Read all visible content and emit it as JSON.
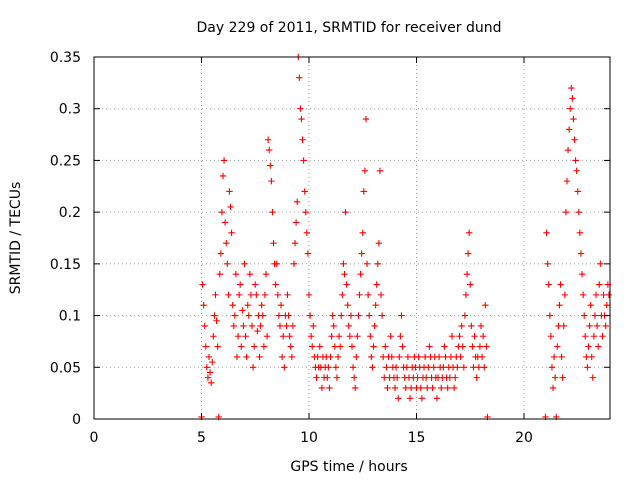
{
  "chart_data": {
    "type": "scatter",
    "title": "Day 229 of 2011, SRMTID for receiver dund",
    "xlabel": "GPS time / hours",
    "ylabel": "SRMTID / TECUs",
    "xlim": [
      0,
      24
    ],
    "ylim": [
      0,
      0.35
    ],
    "xticks": [
      0,
      5,
      10,
      15,
      20
    ],
    "xtick_labels": [
      "0",
      "5",
      "10",
      "15",
      "20"
    ],
    "yticks": [
      0,
      0.05,
      0.1,
      0.15,
      0.2,
      0.25,
      0.3,
      0.35
    ],
    "ytick_labels": [
      "0",
      "0.05",
      "0.1",
      "0.15",
      "0.2",
      "0.25",
      "0.3",
      "0.35"
    ],
    "grid": true,
    "legend": "none",
    "marker": "plus",
    "color": "#ff0000",
    "point_count_note": "approximately 1900 points; dense clusters listed as sampled readings",
    "points": [
      [
        5.0,
        0.002
      ],
      [
        5.05,
        0.13
      ],
      [
        5.1,
        0.11
      ],
      [
        5.15,
        0.09
      ],
      [
        5.2,
        0.07
      ],
      [
        5.25,
        0.05
      ],
      [
        5.3,
        0.04
      ],
      [
        5.35,
        0.06
      ],
      [
        5.4,
        0.045
      ],
      [
        5.45,
        0.035
      ],
      [
        5.5,
        0.055
      ],
      [
        5.55,
        0.08
      ],
      [
        5.6,
        0.1
      ],
      [
        5.65,
        0.12
      ],
      [
        5.7,
        0.095
      ],
      [
        5.75,
        0.07
      ],
      [
        5.8,
        0.002
      ],
      [
        5.85,
        0.14
      ],
      [
        5.9,
        0.16
      ],
      [
        5.95,
        0.2
      ],
      [
        6.0,
        0.235
      ],
      [
        6.05,
        0.25
      ],
      [
        6.1,
        0.19
      ],
      [
        6.15,
        0.17
      ],
      [
        6.2,
        0.15
      ],
      [
        6.25,
        0.12
      ],
      [
        6.3,
        0.22
      ],
      [
        6.35,
        0.205
      ],
      [
        6.4,
        0.18
      ],
      [
        6.45,
        0.11
      ],
      [
        6.5,
        0.09
      ],
      [
        6.55,
        0.1
      ],
      [
        6.6,
        0.14
      ],
      [
        6.65,
        0.06
      ],
      [
        6.7,
        0.08
      ],
      [
        6.75,
        0.12
      ],
      [
        6.8,
        0.13
      ],
      [
        6.85,
        0.07
      ],
      [
        6.9,
        0.105
      ],
      [
        6.95,
        0.09
      ],
      [
        7.0,
        0.15
      ],
      [
        7.05,
        0.08
      ],
      [
        7.1,
        0.06
      ],
      [
        7.15,
        0.11
      ],
      [
        7.2,
        0.1
      ],
      [
        7.25,
        0.14
      ],
      [
        7.3,
        0.12
      ],
      [
        7.35,
        0.09
      ],
      [
        7.4,
        0.05
      ],
      [
        7.45,
        0.07
      ],
      [
        7.5,
        0.13
      ],
      [
        7.55,
        0.12
      ],
      [
        7.6,
        0.085
      ],
      [
        7.65,
        0.1
      ],
      [
        7.7,
        0.06
      ],
      [
        7.75,
        0.09
      ],
      [
        7.8,
        0.11
      ],
      [
        7.85,
        0.1
      ],
      [
        7.9,
        0.07
      ],
      [
        7.95,
        0.12
      ],
      [
        8.0,
        0.14
      ],
      [
        8.05,
        0.08
      ],
      [
        8.1,
        0.27
      ],
      [
        8.15,
        0.26
      ],
      [
        8.2,
        0.245
      ],
      [
        8.25,
        0.23
      ],
      [
        8.3,
        0.2
      ],
      [
        8.35,
        0.17
      ],
      [
        8.4,
        0.15
      ],
      [
        8.45,
        0.13
      ],
      [
        8.5,
        0.15
      ],
      [
        8.55,
        0.12
      ],
      [
        8.6,
        0.1
      ],
      [
        8.65,
        0.09
      ],
      [
        8.7,
        0.11
      ],
      [
        8.75,
        0.06
      ],
      [
        8.8,
        0.08
      ],
      [
        8.85,
        0.05
      ],
      [
        8.9,
        0.1
      ],
      [
        8.95,
        0.09
      ],
      [
        9.0,
        0.12
      ],
      [
        9.05,
        0.1
      ],
      [
        9.1,
        0.08
      ],
      [
        9.15,
        0.07
      ],
      [
        9.2,
        0.06
      ],
      [
        9.25,
        0.09
      ],
      [
        9.3,
        0.15
      ],
      [
        9.35,
        0.17
      ],
      [
        9.4,
        0.19
      ],
      [
        9.45,
        0.21
      ],
      [
        9.5,
        0.35
      ],
      [
        9.55,
        0.33
      ],
      [
        9.6,
        0.3
      ],
      [
        9.65,
        0.29
      ],
      [
        9.7,
        0.27
      ],
      [
        9.75,
        0.25
      ],
      [
        9.8,
        0.22
      ],
      [
        9.85,
        0.2
      ],
      [
        9.9,
        0.18
      ],
      [
        9.95,
        0.16
      ],
      [
        10.0,
        0.12
      ],
      [
        10.05,
        0.1
      ],
      [
        10.1,
        0.08
      ],
      [
        10.15,
        0.07
      ],
      [
        10.2,
        0.09
      ],
      [
        10.25,
        0.06
      ],
      [
        10.3,
        0.05
      ],
      [
        10.35,
        0.04
      ],
      [
        10.4,
        0.06
      ],
      [
        10.45,
        0.05
      ],
      [
        10.5,
        0.07
      ],
      [
        10.55,
        0.05
      ],
      [
        10.6,
        0.03
      ],
      [
        10.65,
        0.06
      ],
      [
        10.7,
        0.04
      ],
      [
        10.75,
        0.05
      ],
      [
        10.8,
        0.06
      ],
      [
        10.85,
        0.04
      ],
      [
        10.9,
        0.05
      ],
      [
        10.95,
        0.03
      ],
      [
        11.0,
        0.06
      ],
      [
        11.05,
        0.08
      ],
      [
        11.1,
        0.1
      ],
      [
        11.15,
        0.09
      ],
      [
        11.2,
        0.07
      ],
      [
        11.25,
        0.05
      ],
      [
        11.3,
        0.04
      ],
      [
        11.35,
        0.06
      ],
      [
        11.4,
        0.08
      ],
      [
        11.45,
        0.07
      ],
      [
        11.5,
        0.1
      ],
      [
        11.55,
        0.12
      ],
      [
        11.6,
        0.15
      ],
      [
        11.65,
        0.14
      ],
      [
        11.7,
        0.2
      ],
      [
        11.75,
        0.13
      ],
      [
        11.8,
        0.11
      ],
      [
        11.85,
        0.09
      ],
      [
        11.9,
        0.08
      ],
      [
        11.95,
        0.1
      ],
      [
        12.0,
        0.07
      ],
      [
        12.05,
        0.05
      ],
      [
        12.1,
        0.04
      ],
      [
        12.15,
        0.03
      ],
      [
        12.2,
        0.06
      ],
      [
        12.25,
        0.08
      ],
      [
        12.3,
        0.1
      ],
      [
        12.35,
        0.12
      ],
      [
        12.4,
        0.14
      ],
      [
        12.45,
        0.16
      ],
      [
        12.5,
        0.18
      ],
      [
        12.55,
        0.22
      ],
      [
        12.6,
        0.24
      ],
      [
        12.65,
        0.29
      ],
      [
        12.7,
        0.15
      ],
      [
        12.75,
        0.12
      ],
      [
        12.8,
        0.1
      ],
      [
        12.85,
        0.08
      ],
      [
        12.9,
        0.06
      ],
      [
        12.95,
        0.05
      ],
      [
        13.0,
        0.07
      ],
      [
        13.05,
        0.09
      ],
      [
        13.1,
        0.11
      ],
      [
        13.15,
        0.13
      ],
      [
        13.2,
        0.15
      ],
      [
        13.25,
        0.17
      ],
      [
        13.3,
        0.24
      ],
      [
        13.35,
        0.12
      ],
      [
        13.4,
        0.1
      ],
      [
        13.45,
        0.06
      ],
      [
        13.5,
        0.04
      ],
      [
        13.55,
        0.07
      ],
      [
        13.6,
        0.05
      ],
      [
        13.65,
        0.03
      ],
      [
        13.7,
        0.06
      ],
      [
        13.75,
        0.04
      ],
      [
        13.8,
        0.08
      ],
      [
        13.85,
        0.06
      ],
      [
        13.9,
        0.05
      ],
      [
        13.95,
        0.04
      ],
      [
        14.0,
        0.03
      ],
      [
        14.05,
        0.05
      ],
      [
        14.1,
        0.04
      ],
      [
        14.15,
        0.02
      ],
      [
        14.2,
        0.06
      ],
      [
        14.25,
        0.08
      ],
      [
        14.3,
        0.1
      ],
      [
        14.35,
        0.07
      ],
      [
        14.4,
        0.05
      ],
      [
        14.45,
        0.04
      ],
      [
        14.5,
        0.03
      ],
      [
        14.55,
        0.05
      ],
      [
        14.6,
        0.06
      ],
      [
        14.65,
        0.04
      ],
      [
        14.7,
        0.02
      ],
      [
        14.75,
        0.03
      ],
      [
        14.8,
        0.05
      ],
      [
        14.85,
        0.04
      ],
      [
        14.9,
        0.06
      ],
      [
        14.95,
        0.05
      ],
      [
        15.0,
        0.03
      ],
      [
        15.05,
        0.04
      ],
      [
        15.1,
        0.06
      ],
      [
        15.15,
        0.05
      ],
      [
        15.2,
        0.03
      ],
      [
        15.25,
        0.02
      ],
      [
        15.3,
        0.04
      ],
      [
        15.35,
        0.05
      ],
      [
        15.4,
        0.06
      ],
      [
        15.45,
        0.04
      ],
      [
        15.5,
        0.03
      ],
      [
        15.55,
        0.05
      ],
      [
        15.6,
        0.07
      ],
      [
        15.65,
        0.06
      ],
      [
        15.7,
        0.04
      ],
      [
        15.75,
        0.03
      ],
      [
        15.8,
        0.05
      ],
      [
        15.85,
        0.06
      ],
      [
        15.9,
        0.04
      ],
      [
        15.95,
        0.02
      ],
      [
        16.0,
        0.04
      ],
      [
        16.05,
        0.06
      ],
      [
        16.1,
        0.05
      ],
      [
        16.15,
        0.03
      ],
      [
        16.2,
        0.04
      ],
      [
        16.25,
        0.05
      ],
      [
        16.3,
        0.07
      ],
      [
        16.35,
        0.06
      ],
      [
        16.4,
        0.04
      ],
      [
        16.45,
        0.03
      ],
      [
        16.5,
        0.05
      ],
      [
        16.55,
        0.04
      ],
      [
        16.6,
        0.06
      ],
      [
        16.65,
        0.08
      ],
      [
        16.7,
        0.05
      ],
      [
        16.75,
        0.03
      ],
      [
        16.8,
        0.04
      ],
      [
        16.85,
        0.06
      ],
      [
        16.9,
        0.05
      ],
      [
        16.95,
        0.07
      ],
      [
        17.0,
        0.08
      ],
      [
        17.05,
        0.06
      ],
      [
        17.1,
        0.09
      ],
      [
        17.15,
        0.07
      ],
      [
        17.2,
        0.05
      ],
      [
        17.25,
        0.1
      ],
      [
        17.3,
        0.12
      ],
      [
        17.35,
        0.14
      ],
      [
        17.4,
        0.16
      ],
      [
        17.45,
        0.18
      ],
      [
        17.5,
        0.13
      ],
      [
        17.55,
        0.09
      ],
      [
        17.6,
        0.07
      ],
      [
        17.65,
        0.05
      ],
      [
        17.7,
        0.08
      ],
      [
        17.75,
        0.06
      ],
      [
        17.8,
        0.04
      ],
      [
        17.85,
        0.06
      ],
      [
        17.9,
        0.05
      ],
      [
        17.95,
        0.07
      ],
      [
        18.0,
        0.09
      ],
      [
        18.05,
        0.06
      ],
      [
        18.1,
        0.08
      ],
      [
        18.15,
        0.05
      ],
      [
        18.2,
        0.11
      ],
      [
        18.25,
        0.07
      ],
      [
        18.3,
        0.002
      ],
      [
        21.0,
        0.002
      ],
      [
        21.05,
        0.18
      ],
      [
        21.1,
        0.15
      ],
      [
        21.15,
        0.13
      ],
      [
        21.2,
        0.1
      ],
      [
        21.25,
        0.08
      ],
      [
        21.3,
        0.05
      ],
      [
        21.35,
        0.03
      ],
      [
        21.4,
        0.06
      ],
      [
        21.45,
        0.04
      ],
      [
        21.5,
        0.002
      ],
      [
        21.55,
        0.07
      ],
      [
        21.6,
        0.09
      ],
      [
        21.65,
        0.11
      ],
      [
        21.7,
        0.13
      ],
      [
        21.75,
        0.06
      ],
      [
        21.8,
        0.04
      ],
      [
        21.85,
        0.09
      ],
      [
        21.9,
        0.12
      ],
      [
        21.95,
        0.2
      ],
      [
        22.0,
        0.23
      ],
      [
        22.05,
        0.26
      ],
      [
        22.1,
        0.28
      ],
      [
        22.15,
        0.3
      ],
      [
        22.2,
        0.32
      ],
      [
        22.25,
        0.31
      ],
      [
        22.3,
        0.29
      ],
      [
        22.35,
        0.27
      ],
      [
        22.4,
        0.25
      ],
      [
        22.45,
        0.24
      ],
      [
        22.5,
        0.22
      ],
      [
        22.55,
        0.2
      ],
      [
        22.6,
        0.18
      ],
      [
        22.65,
        0.16
      ],
      [
        22.7,
        0.14
      ],
      [
        22.75,
        0.12
      ],
      [
        22.8,
        0.1
      ],
      [
        22.85,
        0.08
      ],
      [
        22.9,
        0.06
      ],
      [
        22.95,
        0.05
      ],
      [
        23.0,
        0.07
      ],
      [
        23.05,
        0.09
      ],
      [
        23.1,
        0.11
      ],
      [
        23.15,
        0.06
      ],
      [
        23.2,
        0.04
      ],
      [
        23.25,
        0.08
      ],
      [
        23.3,
        0.1
      ],
      [
        23.35,
        0.12
      ],
      [
        23.4,
        0.09
      ],
      [
        23.45,
        0.07
      ],
      [
        23.5,
        0.13
      ],
      [
        23.55,
        0.15
      ],
      [
        23.6,
        0.1
      ],
      [
        23.65,
        0.08
      ],
      [
        23.7,
        0.12
      ],
      [
        23.75,
        0.1
      ],
      [
        23.8,
        0.09
      ],
      [
        23.85,
        0.11
      ],
      [
        23.9,
        0.13
      ],
      [
        23.95,
        0.12
      ]
    ]
  }
}
